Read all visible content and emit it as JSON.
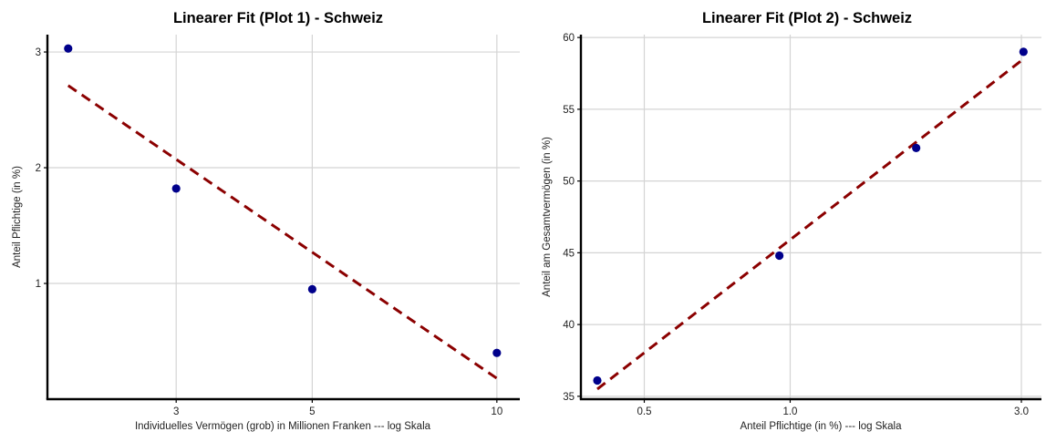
{
  "chart_data": [
    {
      "type": "scatter",
      "title": "Linearer Fit (Plot 1) - Schweiz",
      "xlabel": "Individuelles Vermögen (grob) in Millionen Franken --- log Skala",
      "ylabel": "Anteil Pflichtige (in %)",
      "x_scale": "log",
      "xlim": [
        1.85,
        10.9
      ],
      "ylim": [
        0.0,
        3.15
      ],
      "x_ticks": [
        3,
        5,
        10
      ],
      "x_tick_labels": [
        "3",
        "5",
        "10"
      ],
      "y_ticks": [
        1,
        2,
        3
      ],
      "y_tick_labels": [
        "1",
        "2",
        "3"
      ],
      "grid": true,
      "points": [
        {
          "x": 2.0,
          "y": 3.03
        },
        {
          "x": 3.0,
          "y": 1.82
        },
        {
          "x": 5.0,
          "y": 0.95
        },
        {
          "x": 10.0,
          "y": 0.4
        }
      ],
      "fit_line": {
        "x": [
          2.0,
          10.0
        ],
        "y": [
          2.71,
          0.18
        ]
      },
      "colors": {
        "points": "#00008b",
        "fit": "#8b0000"
      }
    },
    {
      "type": "scatter",
      "title": "Linearer Fit (Plot 2) - Schweiz",
      "xlabel": "Anteil Pflichtige (in %) --- log Skala",
      "ylabel": "Anteil am Gesamtvermögen (in %)",
      "x_scale": "log",
      "xlim": [
        0.37,
        3.3
      ],
      "ylim": [
        34.8,
        60.2
      ],
      "x_ticks": [
        0.5,
        1.0,
        3.0
      ],
      "x_tick_labels": [
        "0.5",
        "1.0",
        "3.0"
      ],
      "y_ticks": [
        35,
        40,
        45,
        50,
        55,
        60
      ],
      "y_tick_labels": [
        "35",
        "40",
        "45",
        "50",
        "55",
        "60"
      ],
      "grid": true,
      "points": [
        {
          "x": 0.4,
          "y": 36.1
        },
        {
          "x": 0.95,
          "y": 44.8
        },
        {
          "x": 1.82,
          "y": 52.3
        },
        {
          "x": 3.03,
          "y": 59.0
        }
      ],
      "fit_line": {
        "x": [
          0.4,
          3.03
        ],
        "y": [
          35.5,
          58.5
        ]
      },
      "colors": {
        "points": "#00008b",
        "fit": "#8b0000"
      }
    }
  ]
}
